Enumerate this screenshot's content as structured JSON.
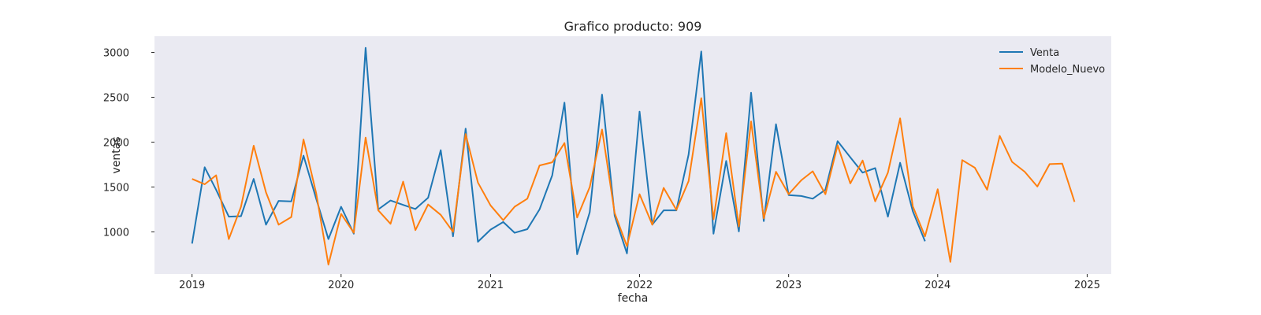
{
  "chart_data": {
    "type": "line",
    "title": "Grafico producto: 909",
    "xlabel": "fecha",
    "ylabel": "ventas",
    "x_ticks": [
      "2019",
      "2020",
      "2021",
      "2022",
      "2023",
      "2024",
      "2025"
    ],
    "y_ticks": [
      1000,
      1500,
      2000,
      2500,
      3000
    ],
    "xlim": [
      "2018-10-01",
      "2025-03-01"
    ],
    "ylim": [
      530,
      3180
    ],
    "grid": false,
    "background": "#eaeaf2",
    "legend": {
      "position": "top-right"
    },
    "series": [
      {
        "name": "Venta",
        "color": "#1f77b4",
        "x": [
          "2019-01",
          "2019-02",
          "2019-03",
          "2019-04",
          "2019-05",
          "2019-06",
          "2019-07",
          "2019-08",
          "2019-09",
          "2019-10",
          "2019-11",
          "2019-12",
          "2020-01",
          "2020-02",
          "2020-03",
          "2020-04",
          "2020-05",
          "2020-06",
          "2020-07",
          "2020-08",
          "2020-09",
          "2020-10",
          "2020-11",
          "2020-12",
          "2021-01",
          "2021-02",
          "2021-03",
          "2021-04",
          "2021-05",
          "2021-06",
          "2021-07",
          "2021-08",
          "2021-09",
          "2021-10",
          "2021-11",
          "2021-12",
          "2022-01",
          "2022-02",
          "2022-03",
          "2022-04",
          "2022-05",
          "2022-06",
          "2022-07",
          "2022-08",
          "2022-09",
          "2022-10",
          "2022-11",
          "2022-12",
          "2023-01",
          "2023-02",
          "2023-03",
          "2023-04",
          "2023-05",
          "2023-06",
          "2023-07",
          "2023-08",
          "2023-09",
          "2023-10",
          "2023-11",
          "2023-12"
        ],
        "y": [
          870,
          1720,
          1470,
          1170,
          1175,
          1590,
          1080,
          1345,
          1340,
          1850,
          1370,
          920,
          1280,
          980,
          3050,
          1250,
          1350,
          1300,
          1255,
          1380,
          1910,
          950,
          2150,
          890,
          1025,
          1110,
          990,
          1030,
          1250,
          1630,
          2440,
          750,
          1220,
          2530,
          1180,
          760,
          2340,
          1080,
          1240,
          1240,
          1860,
          3010,
          980,
          1790,
          1005,
          2550,
          1120,
          2200,
          1410,
          1400,
          1370,
          1470,
          2010,
          1830,
          1660,
          1710,
          1170,
          1770,
          1230,
          895
        ]
      },
      {
        "name": "Modelo_Nuevo",
        "color": "#ff7f0e",
        "x": [
          "2019-01",
          "2019-02",
          "2019-03",
          "2019-04",
          "2019-05",
          "2019-06",
          "2019-07",
          "2019-08",
          "2019-09",
          "2019-10",
          "2019-11",
          "2019-12",
          "2020-01",
          "2020-02",
          "2020-03",
          "2020-04",
          "2020-05",
          "2020-06",
          "2020-07",
          "2020-08",
          "2020-09",
          "2020-10",
          "2020-11",
          "2020-12",
          "2021-01",
          "2021-02",
          "2021-03",
          "2021-04",
          "2021-05",
          "2021-06",
          "2021-07",
          "2021-08",
          "2021-09",
          "2021-10",
          "2021-11",
          "2021-12",
          "2022-01",
          "2022-02",
          "2022-03",
          "2022-04",
          "2022-05",
          "2022-06",
          "2022-07",
          "2022-08",
          "2022-09",
          "2022-10",
          "2022-11",
          "2022-12",
          "2023-01",
          "2023-02",
          "2023-03",
          "2023-04",
          "2023-05",
          "2023-06",
          "2023-07",
          "2023-08",
          "2023-09",
          "2023-10",
          "2023-11",
          "2023-12",
          "2024-01",
          "2024-02",
          "2024-03",
          "2024-04",
          "2024-05",
          "2024-06",
          "2024-07",
          "2024-08",
          "2024-09",
          "2024-10",
          "2024-11",
          "2024-12"
        ],
        "y": [
          1590,
          1530,
          1630,
          920,
          1280,
          1960,
          1440,
          1080,
          1165,
          2030,
          1430,
          635,
          1200,
          990,
          2050,
          1240,
          1090,
          1560,
          1020,
          1305,
          1190,
          1000,
          2090,
          1550,
          1295,
          1130,
          1280,
          1370,
          1740,
          1775,
          1990,
          1160,
          1500,
          2140,
          1210,
          840,
          1420,
          1080,
          1490,
          1245,
          1565,
          2490,
          1140,
          2100,
          1060,
          2230,
          1150,
          1670,
          1420,
          1575,
          1675,
          1420,
          1965,
          1540,
          1795,
          1340,
          1660,
          2265,
          1285,
          950,
          1475,
          665,
          1800,
          1715,
          1470,
          2070,
          1780,
          1670,
          1505,
          1755,
          1760,
          1335
        ]
      }
    ]
  }
}
